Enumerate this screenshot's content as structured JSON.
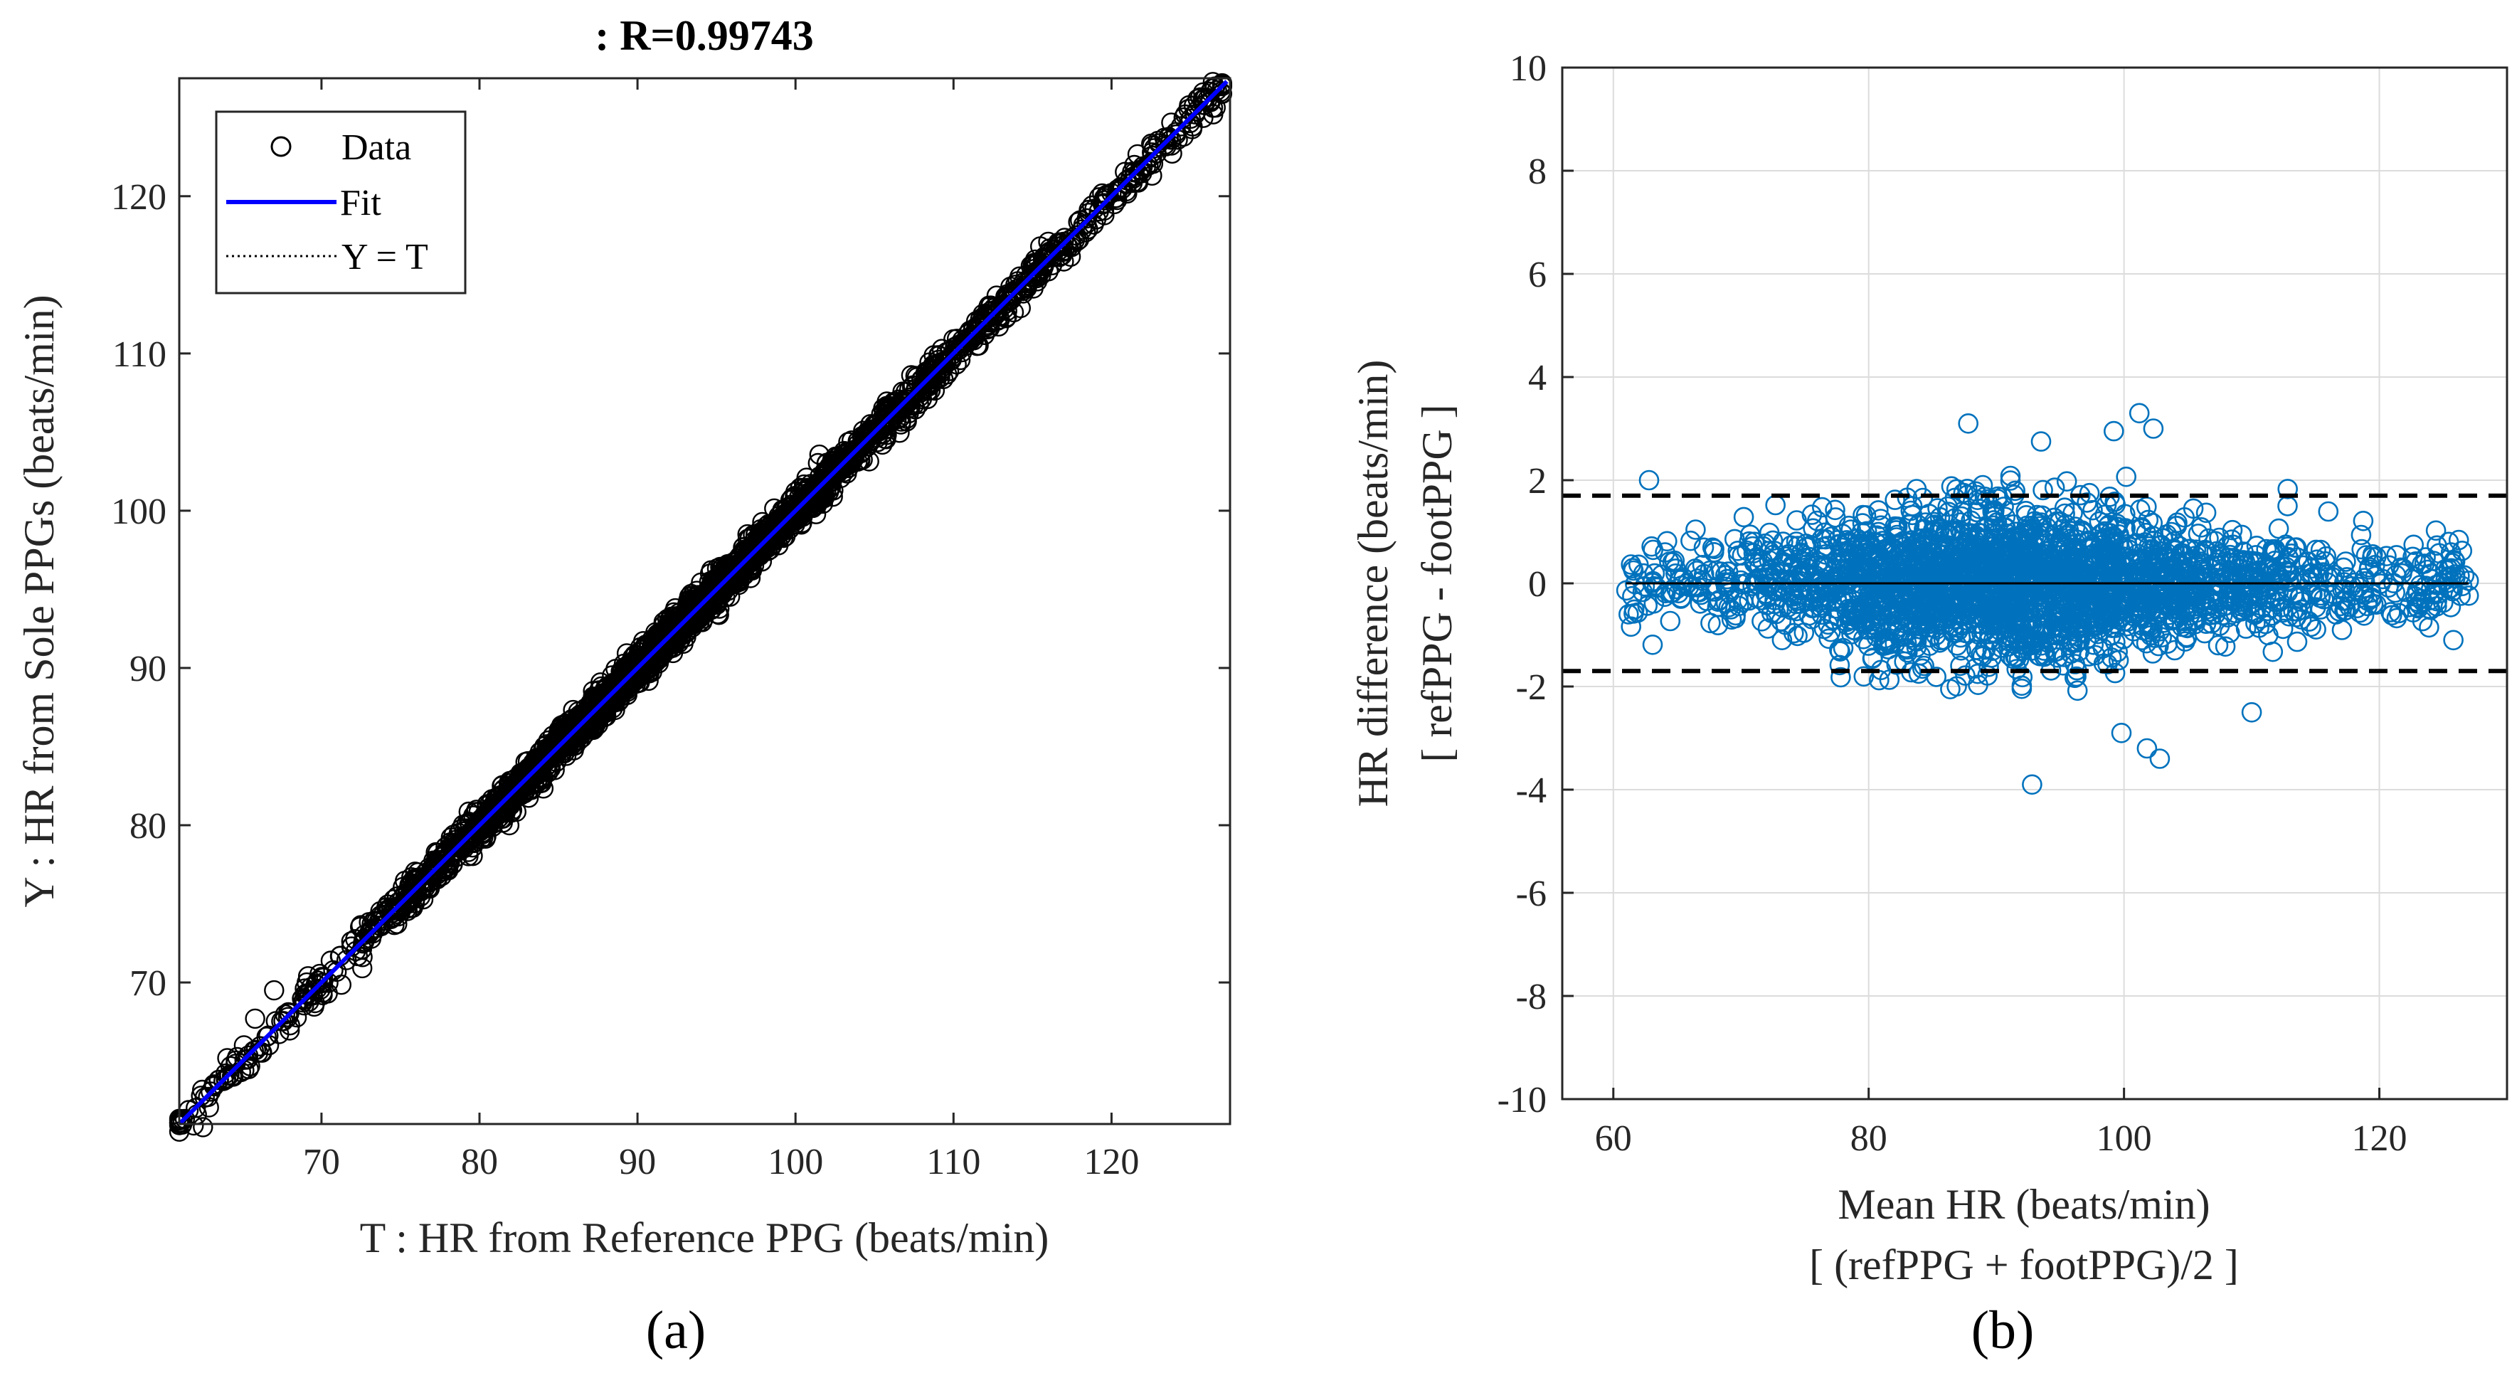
{
  "chart_data": [
    {
      "panel": "(a)",
      "type": "scatter",
      "title": ": R=0.99743",
      "xlabel": "T : HR from Reference PPG (beats/min)",
      "ylabel": "Y : HR from Sole PPGs (beats/min)",
      "xlim": [
        61,
        127.5
      ],
      "ylim": [
        61,
        127.5
      ],
      "xticks": [
        70,
        80,
        90,
        100,
        110,
        120
      ],
      "yticks": [
        70,
        80,
        90,
        100,
        110,
        120
      ],
      "grid": false,
      "legend": {
        "position": "top-left",
        "entries": [
          {
            "label": "Data",
            "style": "open-circle",
            "color": "#000000"
          },
          {
            "label": "Fit",
            "style": "solid-line",
            "color": "#0000ff"
          },
          {
            "label": "Y = T",
            "style": "dotted-line",
            "color": "#000000"
          }
        ]
      },
      "fit": {
        "slope": 1.0,
        "intercept": 0.0,
        "x_range": [
          61,
          127.3
        ]
      },
      "identity": {
        "slope": 1.0,
        "intercept": 0.0
      },
      "series": [
        {
          "name": "Data",
          "x_range": [
            61,
            127
          ],
          "noise_sd": 0.55,
          "approx_points": 2600,
          "points_sample": [
            {
              "x": 61.2,
              "y": 61.3
            },
            {
              "x": 62.5,
              "y": 60.8
            },
            {
              "x": 63.2,
              "y": 63.4
            },
            {
              "x": 65.8,
              "y": 67.7
            },
            {
              "x": 67.0,
              "y": 69.5
            },
            {
              "x": 70.1,
              "y": 70.3
            },
            {
              "x": 80.0,
              "y": 80.3
            },
            {
              "x": 90.0,
              "y": 89.8
            },
            {
              "x": 100.0,
              "y": 100.2
            },
            {
              "x": 110.0,
              "y": 110.9
            },
            {
              "x": 120.0,
              "y": 120.2
            },
            {
              "x": 125.8,
              "y": 126.6
            },
            {
              "x": 127.0,
              "y": 127.0
            }
          ]
        }
      ],
      "caption": "(a)"
    },
    {
      "panel": "(b)",
      "type": "scatter",
      "title": "",
      "xlabel": "Mean HR (beats/min)",
      "xlabel2": "[ (refPPG + footPPG)/2 ]",
      "ylabel": "HR difference (beats/min)",
      "ylabel2": "[ refPPG - footPPG ]",
      "xlim": [
        56,
        130
      ],
      "ylim": [
        -10,
        10
      ],
      "xticks": [
        60,
        80,
        100,
        120
      ],
      "yticks": [
        -10,
        -8,
        -6,
        -4,
        -2,
        0,
        2,
        4,
        6,
        8,
        10
      ],
      "grid": true,
      "mean_line": {
        "y": 0,
        "x_range": [
          61,
          127
        ]
      },
      "limits_of_agreement": [
        1.7,
        -1.7
      ],
      "series": [
        {
          "name": "difference",
          "color": "#0072bd",
          "marker": "open-circle",
          "x_range": [
            61,
            127
          ],
          "y_sd": 0.78,
          "approx_points": 2600,
          "outliers": [
            {
              "x": 101.2,
              "y": 3.3
            },
            {
              "x": 87.8,
              "y": 3.1
            },
            {
              "x": 99.2,
              "y": 2.95
            },
            {
              "x": 102.3,
              "y": 3.0
            },
            {
              "x": 93.5,
              "y": 2.75
            },
            {
              "x": 92.8,
              "y": -3.9
            },
            {
              "x": 102.8,
              "y": -3.4
            },
            {
              "x": 101.8,
              "y": -3.2
            },
            {
              "x": 110.0,
              "y": -2.5
            },
            {
              "x": 99.8,
              "y": -2.9
            },
            {
              "x": 127.0,
              "y": 0.05
            },
            {
              "x": 125.8,
              "y": -1.1
            },
            {
              "x": 61.2,
              "y": -0.6
            },
            {
              "x": 62.8,
              "y": 2.0
            }
          ]
        }
      ],
      "caption": "(b)"
    }
  ]
}
